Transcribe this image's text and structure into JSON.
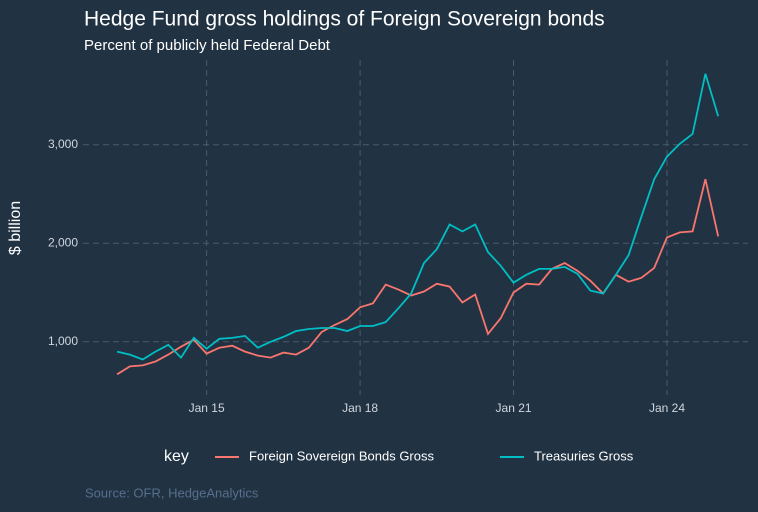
{
  "chart_data": {
    "type": "line",
    "title": "Hedge Fund gross holdings of Foreign Sovereign bonds",
    "subtitle": "Percent of publicly held Federal Debt",
    "y_label": "$ billion",
    "legend_title": "key",
    "source": "Source: OFR, HedgeAnalytics",
    "x": [
      "2013-04",
      "2013-07",
      "2013-10",
      "2014-01",
      "2014-04",
      "2014-07",
      "2014-10",
      "2015-01",
      "2015-04",
      "2015-07",
      "2015-10",
      "2016-01",
      "2016-04",
      "2016-07",
      "2016-10",
      "2017-01",
      "2017-04",
      "2017-07",
      "2017-10",
      "2018-01",
      "2018-04",
      "2018-07",
      "2018-10",
      "2019-01",
      "2019-04",
      "2019-07",
      "2019-10",
      "2020-01",
      "2020-04",
      "2020-07",
      "2020-10",
      "2021-01",
      "2021-04",
      "2021-07",
      "2021-10",
      "2022-01",
      "2022-04",
      "2022-07",
      "2022-10",
      "2023-01",
      "2023-04",
      "2023-07",
      "2023-10",
      "2024-01",
      "2024-04",
      "2024-07",
      "2024-10",
      "2025-01"
    ],
    "series": [
      {
        "name": "Foreign Sovereign Bonds Gross",
        "color": "#f8766d",
        "values": [
          670,
          750,
          760,
          800,
          870,
          950,
          1020,
          880,
          940,
          960,
          900,
          860,
          840,
          890,
          870,
          940,
          1100,
          1170,
          1230,
          1350,
          1390,
          1580,
          1530,
          1470,
          1510,
          1590,
          1560,
          1400,
          1480,
          1080,
          1240,
          1500,
          1590,
          1580,
          1740,
          1800,
          1720,
          1620,
          1490,
          1680,
          1610,
          1650,
          1750,
          2060,
          2110,
          2120,
          2650,
          2070
        ]
      },
      {
        "name": "Treasuries Gross",
        "color": "#00bfc4",
        "values": [
          900,
          870,
          820,
          900,
          970,
          840,
          1040,
          930,
          1030,
          1040,
          1060,
          940,
          1000,
          1050,
          1110,
          1130,
          1140,
          1140,
          1110,
          1160,
          1160,
          1200,
          1340,
          1490,
          1800,
          1940,
          2190,
          2120,
          2190,
          1910,
          1770,
          1600,
          1680,
          1740,
          1740,
          1760,
          1690,
          1520,
          1490,
          1680,
          1880,
          2270,
          2650,
          2880,
          3010,
          3110,
          3720,
          3290
        ]
      }
    ],
    "xlim": [
      "2012-08",
      "2025-08"
    ],
    "xticks": [
      {
        "value": "2015-01",
        "label": "Jan 15"
      },
      {
        "value": "2018-01",
        "label": "Jan 18"
      },
      {
        "value": "2021-01",
        "label": "Jan 21"
      },
      {
        "value": "2024-01",
        "label": "Jan 24"
      }
    ],
    "ylim": [
      460,
      3860
    ],
    "yticks": [
      {
        "value": 1000,
        "label": "1,000"
      },
      {
        "value": 2000,
        "label": "2,000"
      },
      {
        "value": 3000,
        "label": "3,000"
      }
    ],
    "grid": true
  }
}
